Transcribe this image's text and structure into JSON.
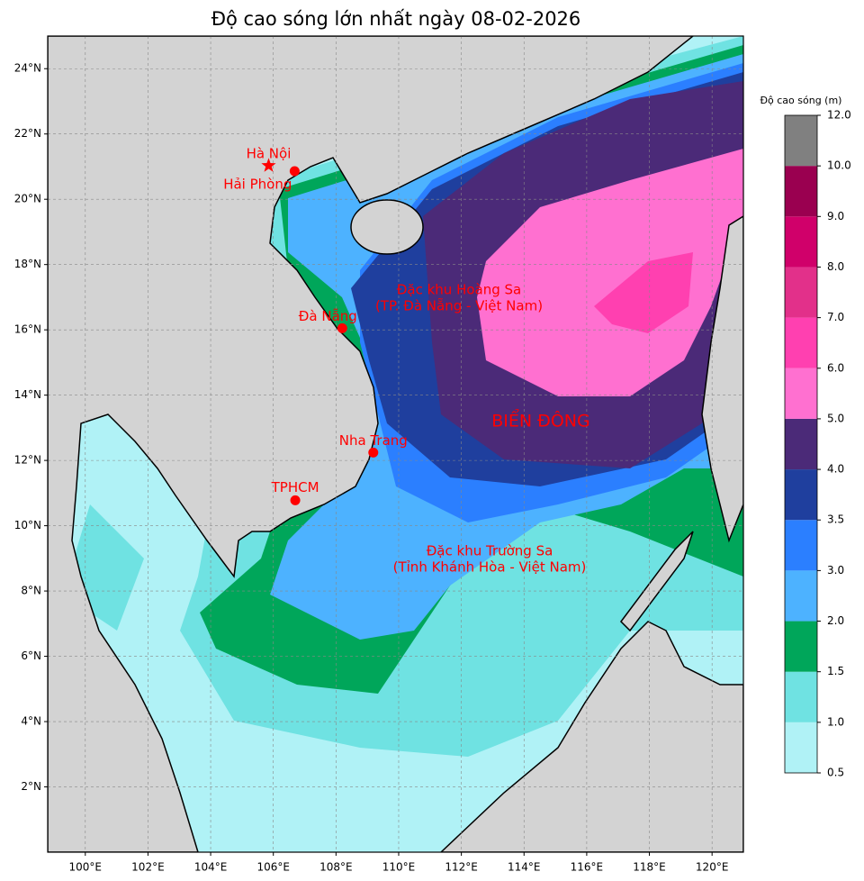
{
  "title": "Độ cao sóng lớn nhất ngày 08-02-2026",
  "map": {
    "xlim": [
      98.8,
      121
    ],
    "ylim": [
      0,
      25
    ],
    "xticks": [
      {
        "value": 100,
        "label": "100°E"
      },
      {
        "value": 102,
        "label": "102°E"
      },
      {
        "value": 104,
        "label": "104°E"
      },
      {
        "value": 106,
        "label": "106°E"
      },
      {
        "value": 108,
        "label": "108°E"
      },
      {
        "value": 110,
        "label": "110°E"
      },
      {
        "value": 112,
        "label": "112°E"
      },
      {
        "value": 114,
        "label": "114°E"
      },
      {
        "value": 116,
        "label": "116°E"
      },
      {
        "value": 118,
        "label": "118°E"
      },
      {
        "value": 120,
        "label": "120°E"
      }
    ],
    "yticks": [
      {
        "value": 2,
        "label": "2°N"
      },
      {
        "value": 4,
        "label": "4°N"
      },
      {
        "value": 6,
        "label": "6°N"
      },
      {
        "value": 8,
        "label": "8°N"
      },
      {
        "value": 10,
        "label": "10°N"
      },
      {
        "value": 12,
        "label": "12°N"
      },
      {
        "value": 14,
        "label": "14°N"
      },
      {
        "value": 16,
        "label": "16°N"
      },
      {
        "value": 18,
        "label": "18°N"
      },
      {
        "value": 20,
        "label": "20°N"
      },
      {
        "value": 22,
        "label": "22°N"
      },
      {
        "value": 24,
        "label": "24°N"
      }
    ],
    "grid": true,
    "cities": [
      {
        "name": "Hà Nội",
        "lon": 105.85,
        "lat": 21.03,
        "marker": "star"
      },
      {
        "name": "Hải Phòng",
        "lon": 106.68,
        "lat": 20.86,
        "marker": "dot"
      },
      {
        "name": "Đà Nẵng",
        "lon": 108.2,
        "lat": 16.05,
        "marker": "dot"
      },
      {
        "name": "Nha Trang",
        "lon": 109.19,
        "lat": 12.24,
        "marker": "dot"
      },
      {
        "name": "TPHCM",
        "lon": 106.7,
        "lat": 10.78,
        "marker": "dot"
      }
    ],
    "annotations": [
      {
        "lines": [
          "Đặc khu Hoàng Sa",
          "(TP. Đà Nẵng - Việt Nam)"
        ]
      },
      {
        "lines": [
          "BIỂN ĐÔNG"
        ]
      },
      {
        "lines": [
          "Đặc khu Trường Sa",
          "(Tỉnh Khánh Hòa - Việt Nam)"
        ]
      }
    ]
  },
  "colorbar": {
    "label": "Độ cao sóng (m)",
    "levels": [
      {
        "value": 0.5,
        "label": "0.5"
      },
      {
        "value": 1,
        "label": "1.0"
      },
      {
        "value": 1.5,
        "label": "1.5"
      },
      {
        "value": 2,
        "label": "2.0"
      },
      {
        "value": 3,
        "label": "3.0"
      },
      {
        "value": 3.5,
        "label": "3.5"
      },
      {
        "value": 4,
        "label": "4.0"
      },
      {
        "value": 5,
        "label": "5.0"
      },
      {
        "value": 6,
        "label": "6.0"
      },
      {
        "value": 7,
        "label": "7.0"
      },
      {
        "value": 8,
        "label": "8.0"
      },
      {
        "value": 9,
        "label": "9.0"
      },
      {
        "value": 10,
        "label": "10.0"
      },
      {
        "value": 12,
        "label": "12.0"
      }
    ],
    "colors": [
      "#b0f2f6",
      "#6fe2e2",
      "#00a65a",
      "#4db2ff",
      "#2b7fff",
      "#1f3f9e",
      "#4b2a78",
      "#ff70d0",
      "#ff40b0",
      "#e2308a",
      "#d0006a",
      "#9a0050",
      "#808080"
    ]
  }
}
